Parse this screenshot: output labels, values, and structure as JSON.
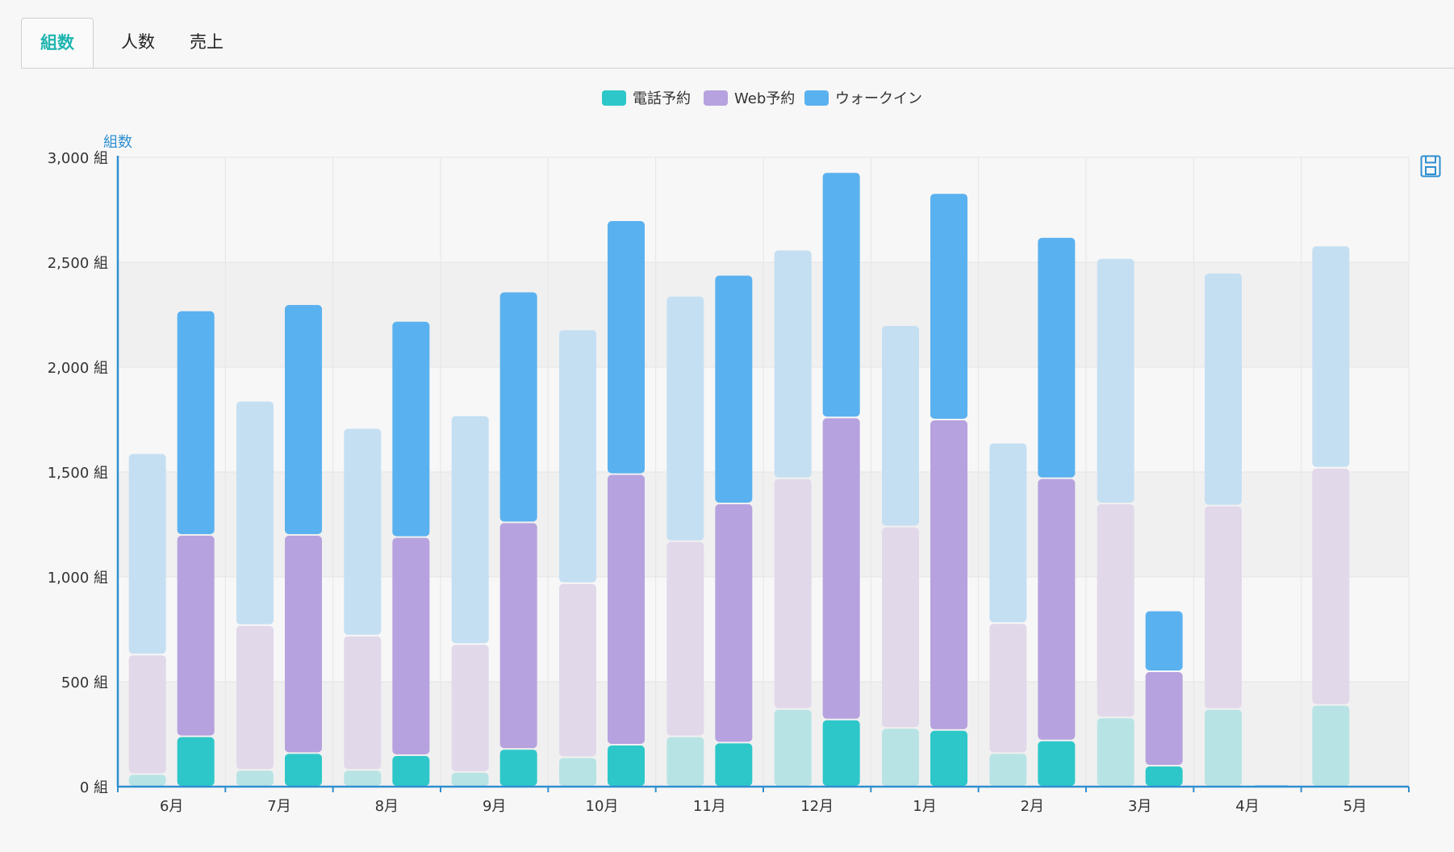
{
  "tabs": [
    {
      "label": "組数",
      "active": true
    },
    {
      "label": "人数",
      "active": false
    },
    {
      "label": "売上",
      "active": false
    }
  ],
  "toolbar": {
    "save_icon": "save-icon"
  },
  "colors": {
    "phone": "#2ec7c9",
    "web": "#b6a2de",
    "walkin": "#5ab1ef",
    "phone_prev": "#b8e3e4",
    "web_prev": "#e1d8ea",
    "walkin_prev": "#c5dff2",
    "axis": "#2f8fd0",
    "active_tab": "#1fb5b0"
  },
  "chart_data": {
    "type": "bar",
    "stacked": true,
    "ylabel": "組数",
    "ylim": [
      0,
      3000
    ],
    "yticks": [
      "0 組",
      "500 組",
      "1,000 組",
      "1,500 組",
      "2,000 組",
      "2,500 組",
      "3,000 組"
    ],
    "categories": [
      "6月",
      "7月",
      "8月",
      "9月",
      "10月",
      "11月",
      "12月",
      "1月",
      "2月",
      "3月",
      "4月",
      "5月"
    ],
    "legend": [
      "電話予約",
      "Web予約",
      "ウォークイン"
    ],
    "legend_position": "top-center",
    "grid": true,
    "groups": [
      {
        "faded": true,
        "series": [
          {
            "name": "電話予約",
            "values": [
              60,
              80,
              80,
              70,
              140,
              240,
              370,
              280,
              160,
              330,
              370,
              390
            ]
          },
          {
            "name": "Web予約",
            "values": [
              570,
              690,
              640,
              610,
              830,
              930,
              1100,
              960,
              620,
              1020,
              970,
              1130
            ]
          },
          {
            "name": "ウォークイン",
            "values": [
              960,
              1070,
              990,
              1090,
              1210,
              1170,
              1090,
              960,
              860,
              1170,
              1110,
              1060
            ]
          }
        ]
      },
      {
        "faded": false,
        "series": [
          {
            "name": "電話予約",
            "values": [
              240,
              160,
              150,
              180,
              200,
              210,
              320,
              270,
              220,
              100,
              0,
              0
            ]
          },
          {
            "name": "Web予約",
            "values": [
              960,
              1040,
              1040,
              1080,
              1290,
              1140,
              1440,
              1480,
              1250,
              450,
              0,
              0
            ]
          },
          {
            "name": "ウォークイン",
            "values": [
              1070,
              1100,
              1030,
              1100,
              1210,
              1090,
              1170,
              1080,
              1150,
              290,
              10,
              0
            ]
          }
        ]
      }
    ]
  }
}
